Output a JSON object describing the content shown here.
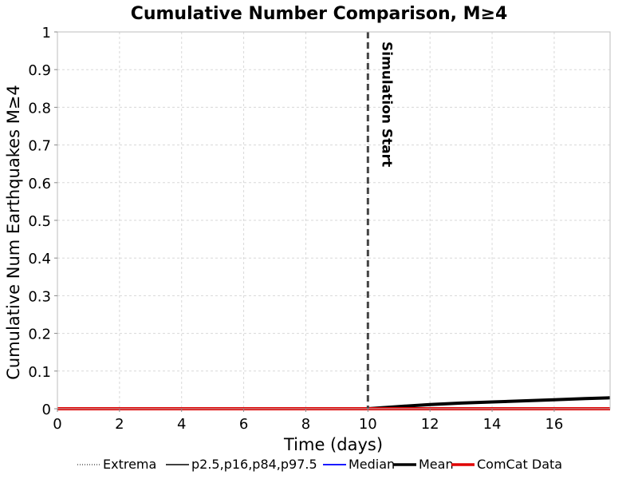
{
  "chart_data": {
    "type": "line",
    "title": "Cumulative Number Comparison, M≥4",
    "xlabel": "Time (days)",
    "ylabel": "Cumulative Num Earthquakes M≥4",
    "xlim": [
      0,
      17.8
    ],
    "ylim": [
      0,
      1
    ],
    "x_ticks": [
      0,
      2,
      4,
      6,
      8,
      10,
      12,
      14,
      16
    ],
    "x_tick_labels": [
      "0",
      "2",
      "4",
      "6",
      "8",
      "10",
      "12",
      "14",
      "16"
    ],
    "y_ticks": [
      0,
      0.1,
      0.2,
      0.3,
      0.4,
      0.5,
      0.6,
      0.7,
      0.8,
      0.9,
      1
    ],
    "y_tick_labels": [
      "0",
      "0.1",
      "0.2",
      "0.3",
      "0.4",
      "0.5",
      "0.6",
      "0.7",
      "0.8",
      "0.9",
      "1"
    ],
    "grid": true,
    "series": [
      {
        "name": "Extrema",
        "color": "#000000",
        "style": "dotted",
        "x": [],
        "y": []
      },
      {
        "name": "p2.5,p16,p84,p97.5",
        "color": "#000000",
        "style": "solid-thin",
        "x": [],
        "y": []
      },
      {
        "name": "Median",
        "color": "#1a1aff",
        "style": "solid",
        "x": [],
        "y": []
      },
      {
        "name": "Mean",
        "color": "#000000",
        "style": "solid-thick",
        "x": [
          10,
          11,
          12,
          13,
          14,
          15,
          16,
          17,
          17.8
        ],
        "y": [
          0,
          0.006,
          0.011,
          0.015,
          0.018,
          0.021,
          0.024,
          0.027,
          0.029
        ]
      },
      {
        "name": "ComCat Data",
        "color": "#e00000",
        "style": "solid-thick",
        "x": [
          0,
          17.8
        ],
        "y": [
          0,
          0
        ]
      }
    ],
    "vertical_lines": [
      {
        "x": 10,
        "label": "Simulation Start",
        "color": "#444444",
        "style": "dashed"
      }
    ],
    "legend_position": "bottom"
  }
}
